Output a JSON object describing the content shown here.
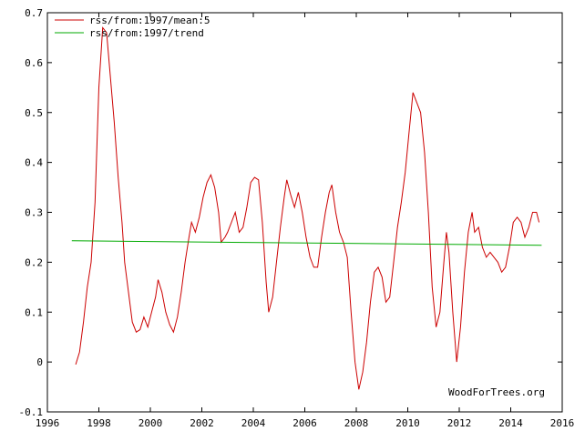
{
  "chart_data": {
    "type": "line",
    "title": "",
    "xlabel": "",
    "ylabel": "",
    "xlim": [
      1996,
      2016
    ],
    "ylim": [
      -0.1,
      0.7
    ],
    "x_ticks": [
      1996,
      1998,
      2000,
      2002,
      2004,
      2006,
      2008,
      2010,
      2012,
      2014,
      2016
    ],
    "y_ticks": [
      -0.1,
      0,
      0.1,
      0.2,
      0.3,
      0.4,
      0.5,
      0.6,
      0.7
    ],
    "x_tick_labels": [
      "1996",
      "1998",
      "2000",
      "2002",
      "2004",
      "2006",
      "2008",
      "2010",
      "2012",
      "2014",
      "2016"
    ],
    "y_tick_labels": [
      "-0.1",
      "0",
      "0.1",
      "0.2",
      "0.3",
      "0.4",
      "0.5",
      "0.6",
      "0.7"
    ],
    "grid": false,
    "legend_position": "top-left",
    "credit": "WoodForTrees.org",
    "series": [
      {
        "name": "rss/from:1997/mean:5",
        "color": "#cc0000",
        "points": [
          [
            1997.1,
            -0.005
          ],
          [
            1997.25,
            0.02
          ],
          [
            1997.4,
            0.08
          ],
          [
            1997.55,
            0.15
          ],
          [
            1997.7,
            0.2
          ],
          [
            1997.85,
            0.32
          ],
          [
            1998.0,
            0.55
          ],
          [
            1998.15,
            0.67
          ],
          [
            1998.3,
            0.66
          ],
          [
            1998.45,
            0.57
          ],
          [
            1998.6,
            0.48
          ],
          [
            1998.75,
            0.37
          ],
          [
            1998.9,
            0.28
          ],
          [
            1999.0,
            0.2
          ],
          [
            1999.15,
            0.14
          ],
          [
            1999.3,
            0.08
          ],
          [
            1999.45,
            0.06
          ],
          [
            1999.6,
            0.065
          ],
          [
            1999.75,
            0.09
          ],
          [
            1999.9,
            0.07
          ],
          [
            2000.05,
            0.1
          ],
          [
            2000.2,
            0.13
          ],
          [
            2000.3,
            0.165
          ],
          [
            2000.45,
            0.14
          ],
          [
            2000.6,
            0.1
          ],
          [
            2000.75,
            0.075
          ],
          [
            2000.9,
            0.06
          ],
          [
            2001.05,
            0.09
          ],
          [
            2001.2,
            0.14
          ],
          [
            2001.35,
            0.2
          ],
          [
            2001.5,
            0.25
          ],
          [
            2001.6,
            0.28
          ],
          [
            2001.75,
            0.26
          ],
          [
            2001.9,
            0.29
          ],
          [
            2002.05,
            0.33
          ],
          [
            2002.2,
            0.36
          ],
          [
            2002.35,
            0.375
          ],
          [
            2002.5,
            0.35
          ],
          [
            2002.65,
            0.3
          ],
          [
            2002.75,
            0.24
          ],
          [
            2002.9,
            0.25
          ],
          [
            2003.0,
            0.26
          ],
          [
            2003.15,
            0.28
          ],
          [
            2003.3,
            0.3
          ],
          [
            2003.45,
            0.26
          ],
          [
            2003.6,
            0.27
          ],
          [
            2003.75,
            0.31
          ],
          [
            2003.9,
            0.36
          ],
          [
            2004.05,
            0.37
          ],
          [
            2004.2,
            0.365
          ],
          [
            2004.35,
            0.28
          ],
          [
            2004.5,
            0.16
          ],
          [
            2004.6,
            0.1
          ],
          [
            2004.75,
            0.13
          ],
          [
            2004.9,
            0.2
          ],
          [
            2005.05,
            0.27
          ],
          [
            2005.2,
            0.33
          ],
          [
            2005.3,
            0.365
          ],
          [
            2005.45,
            0.335
          ],
          [
            2005.6,
            0.31
          ],
          [
            2005.75,
            0.34
          ],
          [
            2005.9,
            0.3
          ],
          [
            2006.05,
            0.25
          ],
          [
            2006.2,
            0.21
          ],
          [
            2006.35,
            0.19
          ],
          [
            2006.5,
            0.19
          ],
          [
            2006.65,
            0.25
          ],
          [
            2006.8,
            0.3
          ],
          [
            2006.95,
            0.34
          ],
          [
            2007.05,
            0.355
          ],
          [
            2007.2,
            0.3
          ],
          [
            2007.35,
            0.26
          ],
          [
            2007.5,
            0.24
          ],
          [
            2007.65,
            0.21
          ],
          [
            2007.8,
            0.1
          ],
          [
            2007.95,
            0.0
          ],
          [
            2008.1,
            -0.055
          ],
          [
            2008.25,
            -0.02
          ],
          [
            2008.4,
            0.04
          ],
          [
            2008.55,
            0.12
          ],
          [
            2008.7,
            0.18
          ],
          [
            2008.85,
            0.19
          ],
          [
            2009.0,
            0.17
          ],
          [
            2009.15,
            0.12
          ],
          [
            2009.3,
            0.13
          ],
          [
            2009.45,
            0.2
          ],
          [
            2009.6,
            0.27
          ],
          [
            2009.75,
            0.32
          ],
          [
            2009.9,
            0.38
          ],
          [
            2010.05,
            0.46
          ],
          [
            2010.2,
            0.54
          ],
          [
            2010.35,
            0.52
          ],
          [
            2010.5,
            0.5
          ],
          [
            2010.65,
            0.42
          ],
          [
            2010.8,
            0.3
          ],
          [
            2010.95,
            0.15
          ],
          [
            2011.1,
            0.07
          ],
          [
            2011.25,
            0.1
          ],
          [
            2011.4,
            0.2
          ],
          [
            2011.5,
            0.26
          ],
          [
            2011.6,
            0.22
          ],
          [
            2011.75,
            0.1
          ],
          [
            2011.9,
            0.0
          ],
          [
            2012.05,
            0.07
          ],
          [
            2012.2,
            0.18
          ],
          [
            2012.35,
            0.26
          ],
          [
            2012.5,
            0.3
          ],
          [
            2012.6,
            0.26
          ],
          [
            2012.75,
            0.27
          ],
          [
            2012.9,
            0.23
          ],
          [
            2013.05,
            0.21
          ],
          [
            2013.2,
            0.22
          ],
          [
            2013.35,
            0.21
          ],
          [
            2013.5,
            0.2
          ],
          [
            2013.65,
            0.18
          ],
          [
            2013.8,
            0.19
          ],
          [
            2013.95,
            0.23
          ],
          [
            2014.1,
            0.28
          ],
          [
            2014.25,
            0.29
          ],
          [
            2014.4,
            0.28
          ],
          [
            2014.55,
            0.25
          ],
          [
            2014.7,
            0.27
          ],
          [
            2014.85,
            0.3
          ],
          [
            2015.0,
            0.3
          ],
          [
            2015.1,
            0.28
          ]
        ]
      },
      {
        "name": "rss/from:1997/trend",
        "color": "#00aa00",
        "points": [
          [
            1996.95,
            0.243
          ],
          [
            2015.2,
            0.234
          ]
        ]
      }
    ]
  }
}
